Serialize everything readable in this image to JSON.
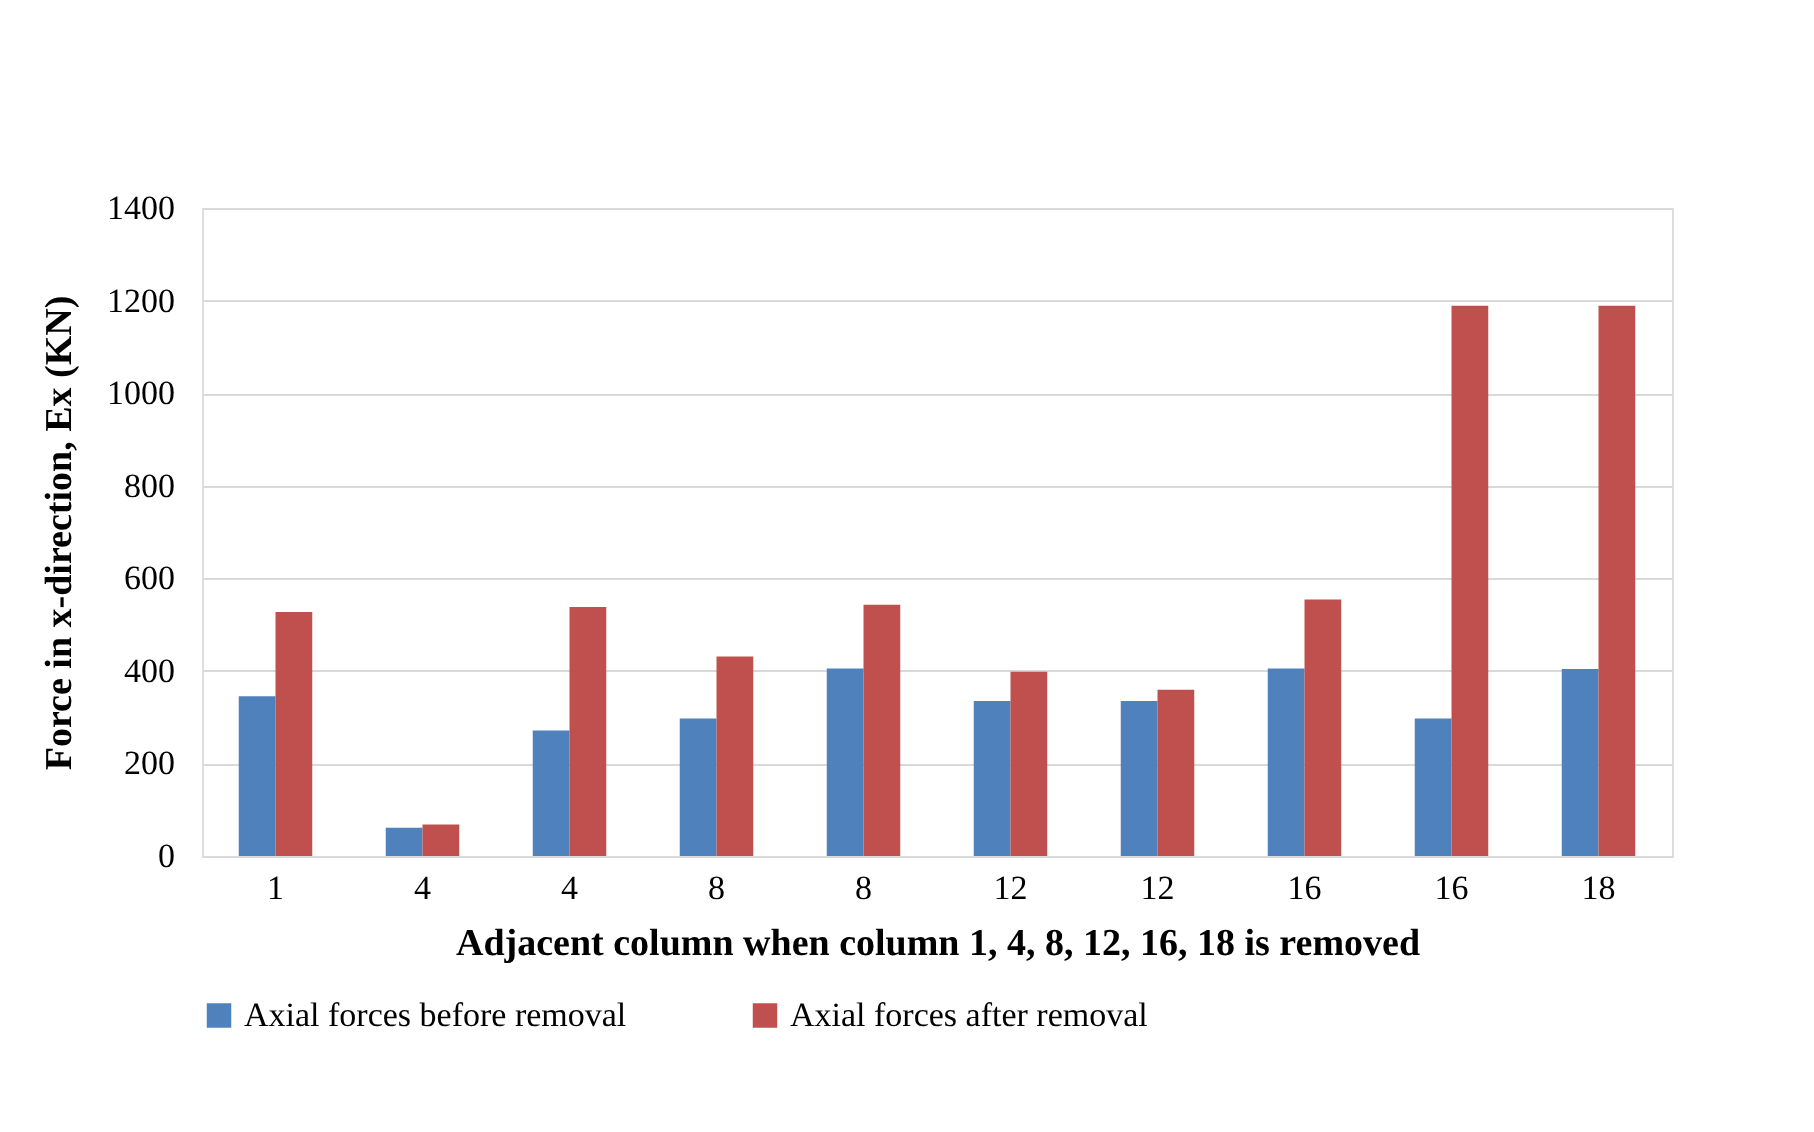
{
  "chart_data": {
    "type": "bar",
    "categories": [
      "1",
      "4",
      "4",
      "8",
      "8",
      "12",
      "12",
      "16",
      "16",
      "18"
    ],
    "series": [
      {
        "name": "Axial forces before removal",
        "color": "#4f81bd",
        "values": [
          345,
          61,
          271,
          297,
          405,
          335,
          335,
          405,
          297,
          404
        ]
      },
      {
        "name": "Axial forces after removal",
        "color": "#c0504d",
        "values": [
          527,
          68,
          538,
          431,
          543,
          398,
          359,
          554,
          1189,
          1189
        ]
      }
    ],
    "xlabel": "Adjacent column when column 1, 4, 8, 12, 16, 18 is removed",
    "ylabel": "Force in x-direction, Ex (KN)",
    "ylim": [
      0,
      1400
    ],
    "yticks": [
      0,
      200,
      400,
      600,
      800,
      1000,
      1200,
      1400
    ],
    "grid": "y",
    "legend": "bottom"
  }
}
